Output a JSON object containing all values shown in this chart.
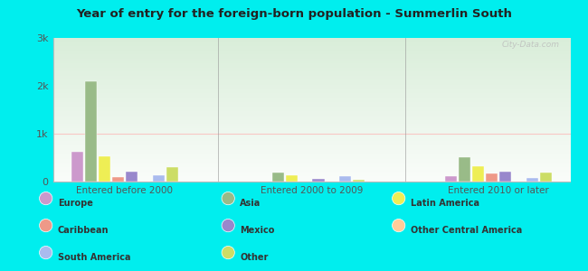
{
  "title": "Year of entry for the foreign-born population - Summerlin South",
  "groups": [
    "Entered before 2000",
    "Entered 2000 to 2009",
    "Entered 2010 or later"
  ],
  "categories": [
    "Europe",
    "Asia",
    "Latin America",
    "Caribbean",
    "Mexico",
    "Other Central America",
    "South America",
    "Other"
  ],
  "colors": {
    "Europe": "#cc99cc",
    "Asia": "#99bb88",
    "Latin America": "#eeee55",
    "Caribbean": "#ee9988",
    "Mexico": "#9988cc",
    "Other Central America": "#ffcc99",
    "South America": "#aabbee",
    "Other": "#ccdd66"
  },
  "values": {
    "Entered before 2000": {
      "Europe": 620,
      "Asia": 2100,
      "Latin America": 530,
      "Caribbean": 100,
      "Mexico": 200,
      "Other Central America": 0,
      "South America": 130,
      "Other": 300
    },
    "Entered 2000 to 2009": {
      "Europe": 0,
      "Asia": 190,
      "Latin America": 130,
      "Caribbean": 0,
      "Mexico": 50,
      "Other Central America": 0,
      "South America": 110,
      "Other": 30
    },
    "Entered 2010 or later": {
      "Europe": 120,
      "Asia": 510,
      "Latin America": 320,
      "Caribbean": 170,
      "Mexico": 200,
      "Other Central America": 0,
      "South America": 80,
      "Other": 190
    }
  },
  "ylim": [
    0,
    3000
  ],
  "yticks": [
    0,
    1000,
    2000,
    3000
  ],
  "ytick_labels": [
    "0",
    "1k",
    "2k",
    "3k"
  ],
  "background_color": "#00eeee",
  "watermark": "City-Data.com",
  "legend_rows": [
    [
      [
        "Europe",
        "#cc99cc"
      ],
      [
        "Asia",
        "#99bb88"
      ],
      [
        "Latin America",
        "#eeee55"
      ]
    ],
    [
      [
        "Caribbean",
        "#ee9988"
      ],
      [
        "Mexico",
        "#9988cc"
      ],
      [
        "Other Central America",
        "#ffcc99"
      ]
    ],
    [
      [
        "South America",
        "#aabbee"
      ],
      [
        "Other",
        "#ccdd66"
      ],
      null
    ]
  ]
}
